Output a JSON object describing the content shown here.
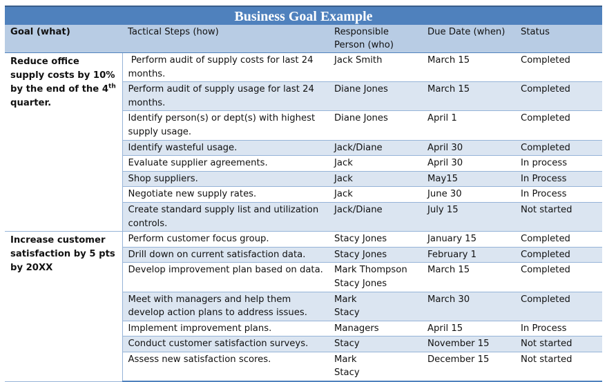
{
  "title": "Business Goal Example",
  "headers": {
    "goal": "Goal (what)",
    "steps": "Tactical Steps (how)",
    "person_line1": "Responsible",
    "person_line2": "Person (who)",
    "date": "Due Date (when)",
    "status": "Status"
  },
  "goal1": {
    "text_before": "Reduce office supply costs by 10% by the end of the 4",
    "sup": "th",
    "text_after": " quarter.",
    "rows": [
      {
        "step": " Perform audit of supply costs for last 24 months.",
        "person": [
          "Jack Smith"
        ],
        "date": "March 15",
        "status": "Completed"
      },
      {
        "step": "Perform audit of supply usage for last 24 months.",
        "person": [
          "Diane Jones"
        ],
        "date": "March 15",
        "status": "Completed"
      },
      {
        "step": "Identify person(s) or dept(s) with highest supply usage.",
        "person": [
          "Diane Jones"
        ],
        "date": "April 1",
        "status": "Completed"
      },
      {
        "step": "Identify wasteful usage.",
        "person": [
          "Jack/Diane"
        ],
        "date": "April 30",
        "status": "Completed"
      },
      {
        "step": "Evaluate supplier agreements.",
        "person": [
          "Jack"
        ],
        "date": "April 30",
        "status": "In process"
      },
      {
        "step": "Shop suppliers.",
        "person": [
          "Jack"
        ],
        "date": "May15",
        "status": "In Process"
      },
      {
        "step": "Negotiate new supply rates.",
        "person": [
          "Jack"
        ],
        "date": "June 30",
        "status": "In Process"
      },
      {
        "step": "Create standard supply list and utilization controls.",
        "person": [
          "Jack/Diane"
        ],
        "date": "July 15",
        "status": "Not started"
      }
    ]
  },
  "goal2": {
    "text": "Increase customer satisfaction by 5 pts by 20XX",
    "rows": [
      {
        "step": "Perform customer focus group.",
        "person": [
          "Stacy Jones"
        ],
        "date": "January 15",
        "status": "Completed"
      },
      {
        "step": "Drill down on current satisfaction data.",
        "person": [
          "Stacy Jones"
        ],
        "date": "February 1",
        "status": "Completed"
      },
      {
        "step": "Develop improvement plan based on data.",
        "person": [
          "Mark Thompson",
          "Stacy Jones"
        ],
        "date": "March 15",
        "status": "Completed"
      },
      {
        "step": "Meet with managers and help them develop action plans to address issues.",
        "person": [
          "Mark",
          "Stacy"
        ],
        "date": "March 30",
        "status": "Completed"
      },
      {
        "step": "Implement improvement plans.",
        "person": [
          "Managers"
        ],
        "date": "April 15",
        "status": "In Process"
      },
      {
        "step": "Conduct customer satisfaction surveys.",
        "person": [
          "Stacy"
        ],
        "date": "November 15",
        "status": "Not started"
      },
      {
        "step": "Assess new satisfaction scores.",
        "person": [
          "Mark",
          "Stacy"
        ],
        "date": "December 15",
        "status": "Not started"
      }
    ]
  }
}
